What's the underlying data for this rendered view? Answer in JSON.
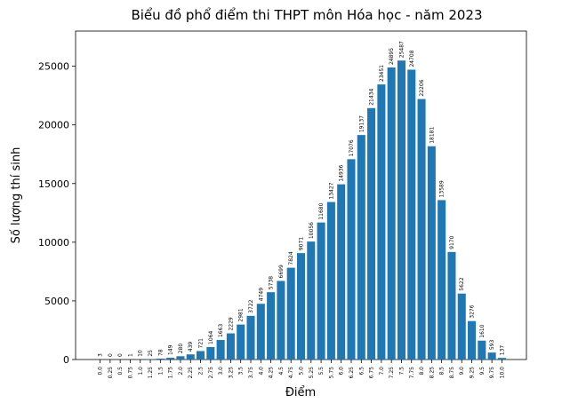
{
  "chart_data": {
    "type": "bar",
    "title": "Biểu đồ phổ điểm thi THPT môn Hóa học - năm 2023",
    "x_label": "Điểm",
    "y_label": "Số lượng thí sinh",
    "categories": [
      "0.0",
      "0.25",
      "0.5",
      "0.75",
      "1.0",
      "1.25",
      "1.5",
      "1.75",
      "2.0",
      "2.25",
      "2.5",
      "2.75",
      "3.0",
      "3.25",
      "3.5",
      "3.75",
      "4.0",
      "4.25",
      "4.5",
      "4.75",
      "5.0",
      "5.25",
      "5.5",
      "5.75",
      "6.0",
      "6.25",
      "6.5",
      "6.75",
      "7.0",
      "7.25",
      "7.5",
      "7.75",
      "8.0",
      "8.25",
      "8.5",
      "8.75",
      "9.0",
      "9.25",
      "9.5",
      "9.75",
      "10.0"
    ],
    "values": [
      3,
      0,
      0,
      1,
      10,
      25,
      78,
      149,
      280,
      439,
      721,
      1064,
      1663,
      2229,
      2981,
      3722,
      4749,
      5738,
      6699,
      7824,
      9071,
      10056,
      11680,
      13427,
      14936,
      17076,
      19137,
      21434,
      23451,
      24895,
      25487,
      24708,
      22206,
      18181,
      13589,
      9170,
      5622,
      3276,
      1610,
      593,
      137
    ],
    "color": "#1f77b4",
    "ylim": [
      0,
      28000
    ],
    "yticks": [
      0,
      5000,
      10000,
      15000,
      20000,
      25000
    ]
  }
}
